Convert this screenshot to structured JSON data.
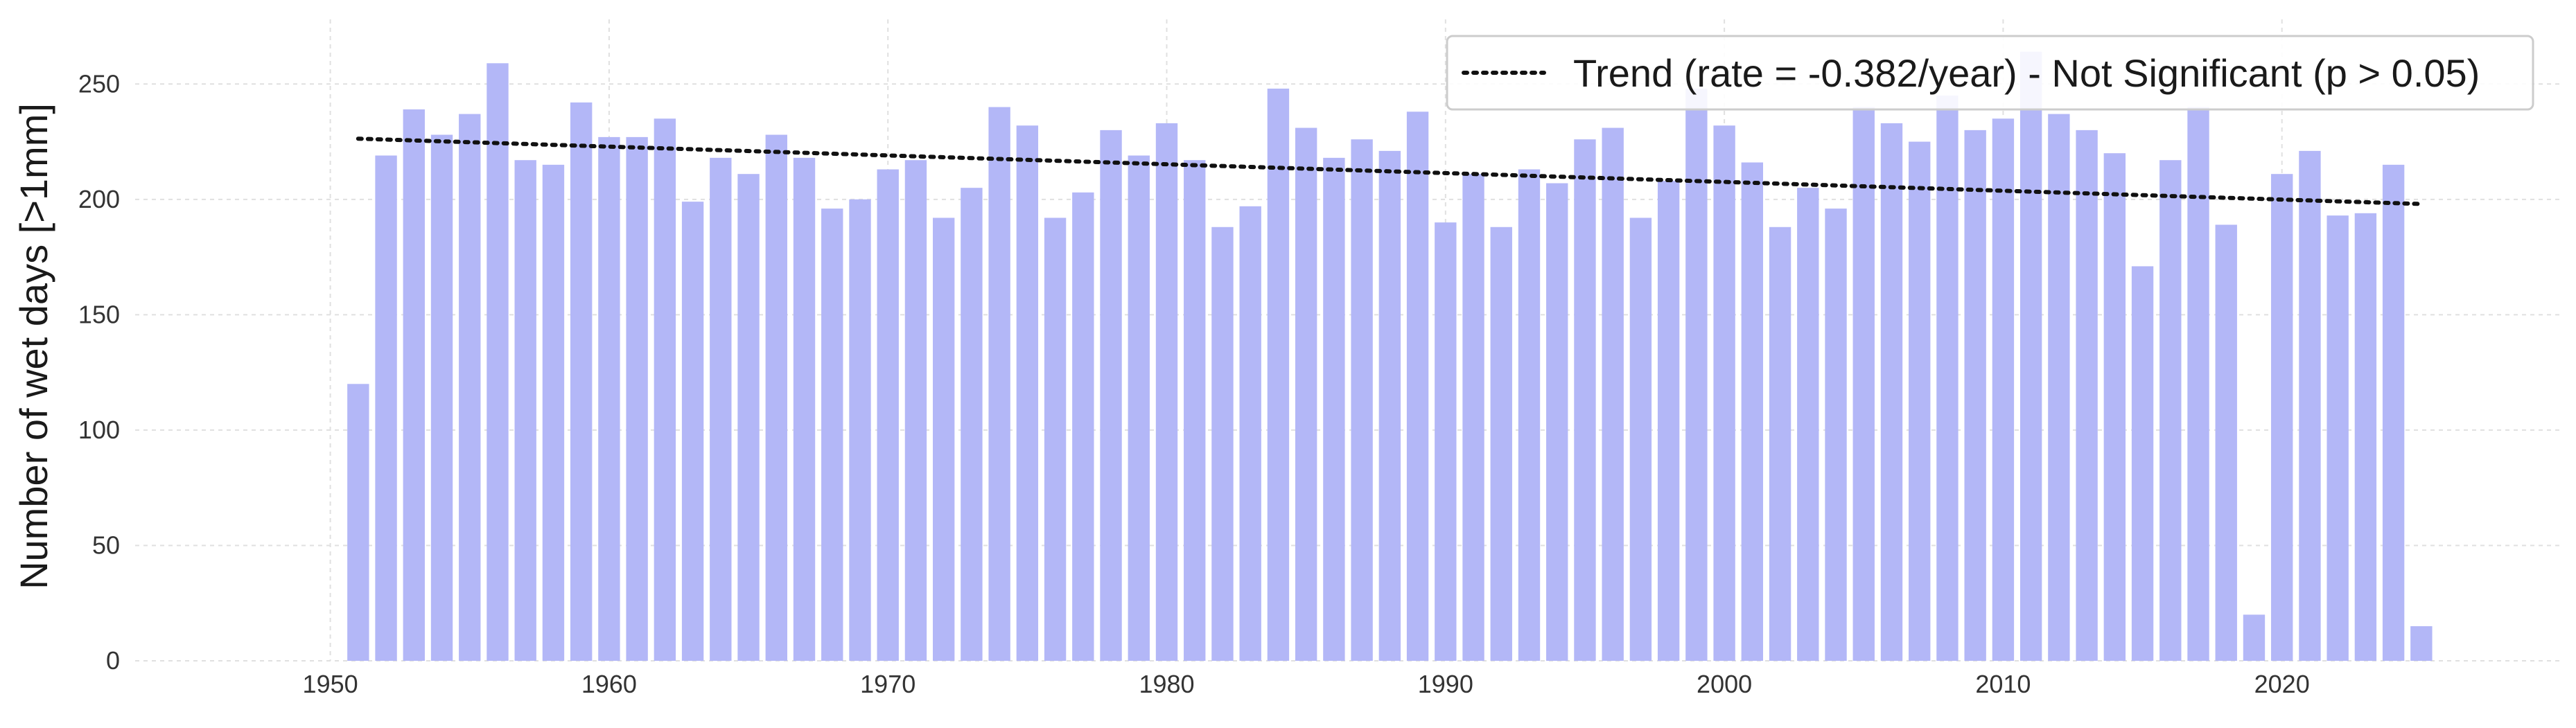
{
  "chart_data": {
    "type": "bar",
    "ylabel": "Number of wet days [>1mm]",
    "xlabel": "",
    "title": "",
    "xlim": [
      1943,
      2030
    ],
    "ylim": [
      0,
      278
    ],
    "xticks": [
      1950,
      1960,
      1970,
      1980,
      1990,
      2000,
      2010,
      2020
    ],
    "yticks": [
      0,
      50,
      100,
      150,
      200,
      250
    ],
    "grid": true,
    "legend_position": "top-right",
    "bar_color": "#b3b7f7",
    "trend_color": "#111111",
    "x": [
      1951,
      1952,
      1953,
      1954,
      1955,
      1956,
      1957,
      1958,
      1959,
      1960,
      1961,
      1962,
      1963,
      1964,
      1965,
      1966,
      1967,
      1968,
      1969,
      1970,
      1971,
      1972,
      1973,
      1974,
      1975,
      1976,
      1977,
      1978,
      1979,
      1980,
      1981,
      1982,
      1983,
      1984,
      1985,
      1986,
      1987,
      1988,
      1989,
      1990,
      1991,
      1992,
      1993,
      1994,
      1995,
      1996,
      1997,
      1998,
      1999,
      2000,
      2001,
      2002,
      2003,
      2004,
      2005,
      2006,
      2007,
      2008,
      2009,
      2010,
      2011,
      2012,
      2013,
      2014,
      2015,
      2016,
      2017,
      2018,
      2019,
      2020,
      2021,
      2022,
      2023,
      2024,
      2025
    ],
    "values": [
      120,
      219,
      239,
      228,
      237,
      259,
      217,
      215,
      242,
      227,
      227,
      235,
      199,
      218,
      211,
      228,
      218,
      196,
      200,
      213,
      217,
      192,
      205,
      240,
      232,
      192,
      203,
      230,
      219,
      233,
      217,
      188,
      197,
      248,
      231,
      218,
      226,
      221,
      238,
      190,
      211,
      188,
      213,
      207,
      226,
      231,
      192,
      208,
      248,
      232,
      216,
      188,
      205,
      196,
      240,
      233,
      225,
      245,
      230,
      235,
      264,
      237,
      230,
      220,
      171,
      217,
      240,
      189,
      20,
      211,
      221,
      193,
      194,
      215,
      15
    ],
    "series": [
      {
        "type": "line",
        "style": "dotted",
        "name": "Trend (rate = -0.382/year) - Not Significant (p > 0.05)",
        "x": [
          1951,
          2025
        ],
        "y": [
          226.3,
          198.0
        ]
      }
    ]
  }
}
